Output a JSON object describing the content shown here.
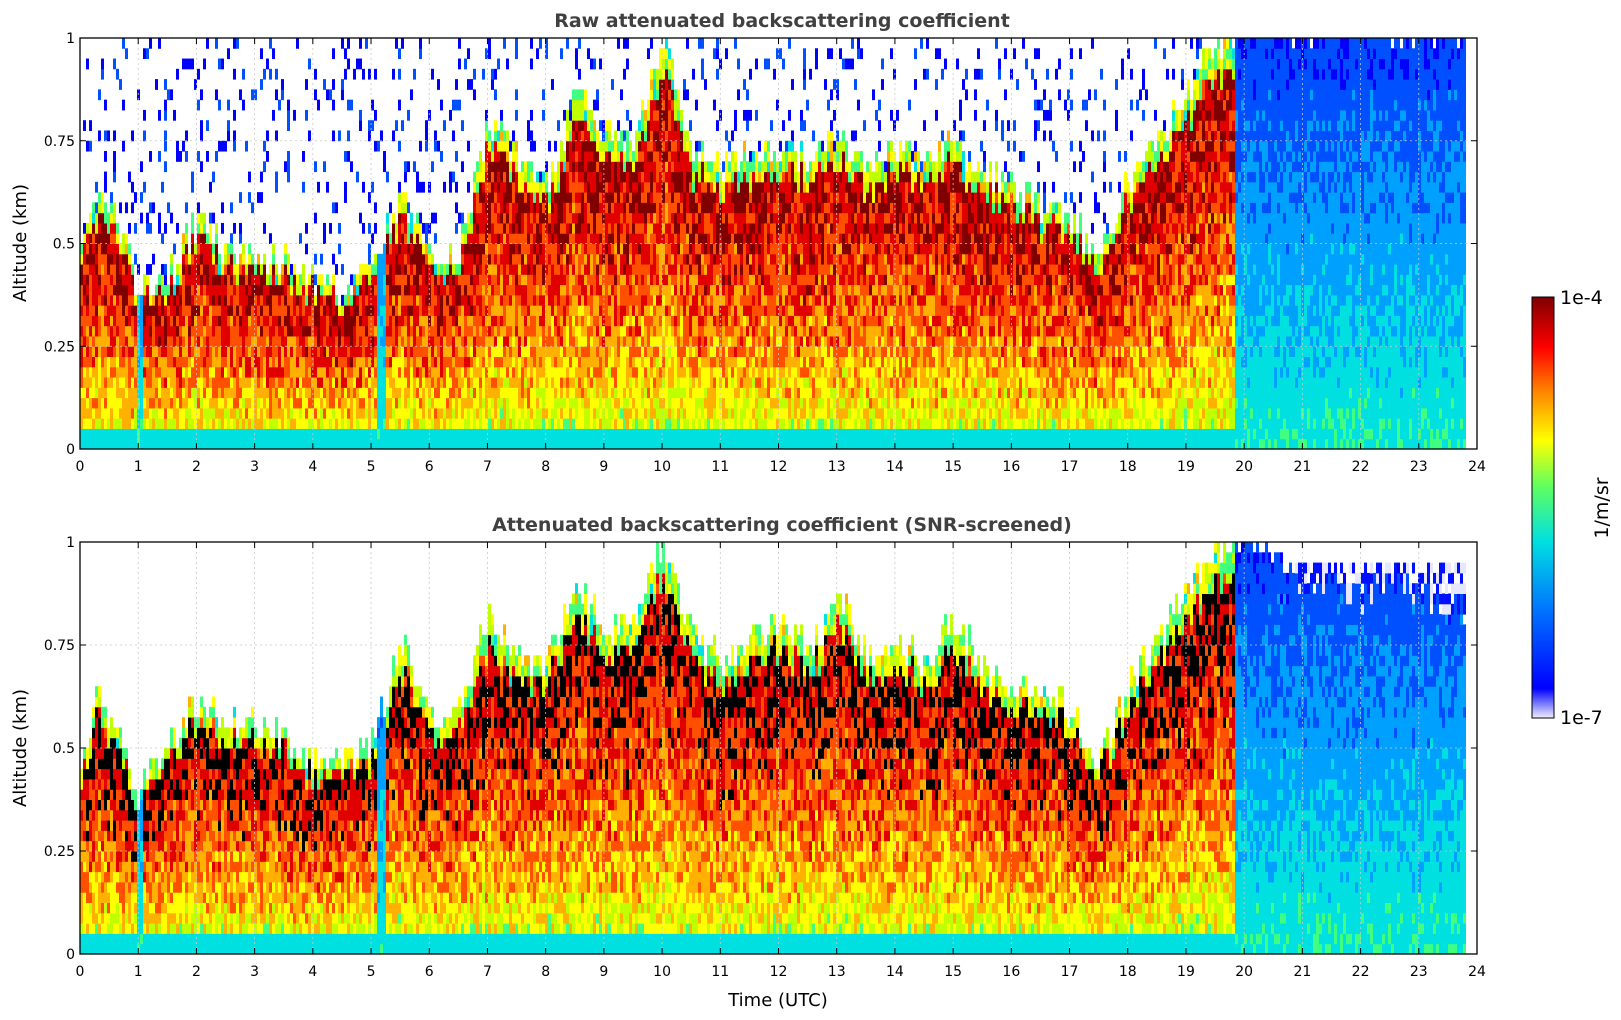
{
  "chart_data": [
    {
      "type": "heatmap",
      "title": "Raw attenuated backscattering coefficient",
      "xlabel": "",
      "ylabel": "Altitude (km)",
      "xlim": [
        0,
        24
      ],
      "ylim": [
        0,
        1
      ],
      "xticks": [
        "0",
        "1",
        "2",
        "3",
        "4",
        "5",
        "6",
        "7",
        "8",
        "9",
        "10",
        "11",
        "12",
        "13",
        "14",
        "15",
        "16",
        "17",
        "18",
        "19",
        "20",
        "21",
        "22",
        "23",
        "24"
      ],
      "yticks": [
        "0",
        "0.25",
        "0.5",
        "0.75",
        "1"
      ],
      "grid": true,
      "screened": false,
      "data_end_hour": 23.8,
      "layer_top_km": {
        "x": [
          0,
          0.3,
          0.6,
          1,
          1.5,
          2,
          2.5,
          3,
          3.5,
          4,
          4.5,
          5,
          5.5,
          6,
          6.5,
          7,
          7.5,
          8,
          8.5,
          9,
          9.5,
          10,
          10.5,
          11,
          11.5,
          12,
          12.5,
          13,
          13.5,
          14,
          14.5,
          15,
          15.5,
          16,
          16.5,
          17,
          17.5,
          18,
          18.5,
          19,
          19.5,
          20,
          20.5,
          21,
          21.5,
          22,
          22.5,
          23,
          23.8
        ],
        "y": [
          0.47,
          0.6,
          0.55,
          0.38,
          0.4,
          0.55,
          0.46,
          0.45,
          0.45,
          0.4,
          0.38,
          0.45,
          0.6,
          0.45,
          0.47,
          0.78,
          0.7,
          0.62,
          0.85,
          0.75,
          0.72,
          1.0,
          0.72,
          0.68,
          0.7,
          0.72,
          0.7,
          0.75,
          0.68,
          0.72,
          0.68,
          0.75,
          0.66,
          0.62,
          0.58,
          0.55,
          0.45,
          0.65,
          0.75,
          0.85,
          0.98,
          1.0,
          1.0,
          1.0,
          1.0,
          1.0,
          1.0,
          1.0,
          1.0
        ]
      },
      "clear_periods_hours": [
        [
          0.95,
          1.05
        ],
        [
          5.1,
          5.25
        ],
        [
          19.8,
          23.8
        ]
      ]
    },
    {
      "type": "heatmap",
      "title": "Attenuated backscattering coefficient (SNR-screened)",
      "xlabel": "Time (UTC)",
      "ylabel": "Altitude (km)",
      "xlim": [
        0,
        24
      ],
      "ylim": [
        0,
        1
      ],
      "xticks": [
        "0",
        "1",
        "2",
        "3",
        "4",
        "5",
        "6",
        "7",
        "8",
        "9",
        "10",
        "11",
        "12",
        "13",
        "14",
        "15",
        "16",
        "17",
        "18",
        "19",
        "20",
        "21",
        "22",
        "23",
        "24"
      ],
      "yticks": [
        "0",
        "0.25",
        "0.5",
        "0.75",
        "1"
      ],
      "grid": true,
      "screened": true,
      "data_end_hour": 23.8,
      "layer_top_km": {
        "x": [
          0,
          0.3,
          0.6,
          1,
          1.5,
          2,
          2.5,
          3,
          3.5,
          4,
          4.5,
          5,
          5.5,
          6,
          6.5,
          7,
          7.5,
          8,
          8.5,
          9,
          9.5,
          10,
          10.5,
          11,
          11.5,
          12,
          12.5,
          13,
          13.5,
          14,
          14.5,
          15,
          15.5,
          16,
          16.5,
          17,
          17.5,
          18,
          18.5,
          19,
          19.5,
          20,
          20.5,
          21,
          21.5,
          22,
          22.5,
          23,
          23.8
        ],
        "y": [
          0.47,
          0.62,
          0.52,
          0.38,
          0.5,
          0.6,
          0.55,
          0.55,
          0.52,
          0.45,
          0.45,
          0.5,
          0.75,
          0.55,
          0.6,
          0.8,
          0.7,
          0.7,
          0.88,
          0.78,
          0.8,
          1.0,
          0.75,
          0.7,
          0.75,
          0.8,
          0.72,
          0.85,
          0.72,
          0.75,
          0.7,
          0.8,
          0.68,
          0.65,
          0.62,
          0.58,
          0.45,
          0.65,
          0.75,
          0.88,
          0.98,
          1.0,
          0.95,
          0.88,
          0.9,
          0.85,
          0.9,
          0.85,
          0.82
        ]
      },
      "clear_periods_hours": [
        [
          0.95,
          1.05
        ],
        [
          5.1,
          5.25
        ],
        [
          19.8,
          23.8
        ]
      ]
    }
  ],
  "colorbar": {
    "label": "1/m/sr",
    "max_label": "1e-4",
    "min_label": "1e-7",
    "min_value": 1e-07,
    "max_value": 0.0001,
    "scale": "log",
    "colormap": [
      "#ffffff",
      "#e6e6ff",
      "#0000ff",
      "#0050ff",
      "#00a0ff",
      "#00e0e0",
      "#40ff80",
      "#c0ff00",
      "#ffff00",
      "#ffb000",
      "#ff5000",
      "#e00000",
      "#800000"
    ]
  }
}
